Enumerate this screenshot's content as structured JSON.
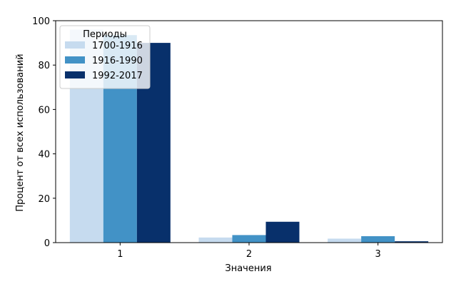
{
  "chart_data": {
    "type": "bar",
    "xlabel": "Значения",
    "ylabel": "Процент от всех использований",
    "categories": [
      "1",
      "2",
      "3"
    ],
    "ylim": [
      0,
      100
    ],
    "yticks": [
      0,
      20,
      40,
      60,
      80,
      100
    ],
    "grid": false,
    "legend": {
      "title": "Периоды",
      "placement": "top-left"
    },
    "series": [
      {
        "name": "1700-1916",
        "color": "#c6dbef",
        "values": [
          96,
          2.3,
          1.8
        ]
      },
      {
        "name": "1916-1990",
        "color": "#4292c6",
        "values": [
          93.5,
          3.4,
          2.9
        ]
      },
      {
        "name": "1992-2017",
        "color": "#08306b",
        "values": [
          90,
          9.4,
          0.6
        ]
      }
    ]
  }
}
